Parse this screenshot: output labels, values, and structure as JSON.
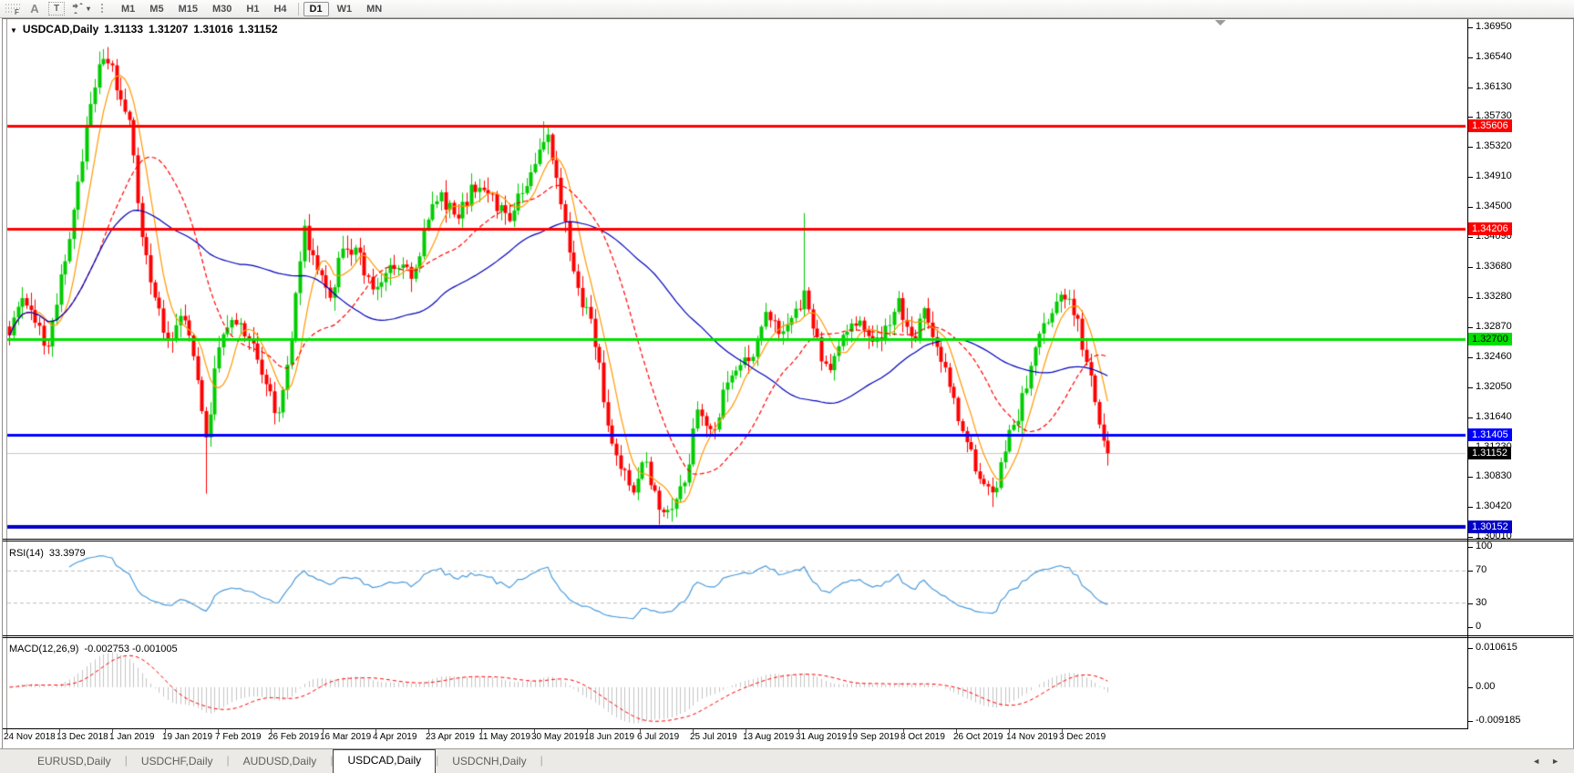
{
  "toolbar": {
    "tools": {
      "fib_glyph": "F",
      "label_glyph": "A",
      "text_glyph": "T",
      "caret": "▾"
    },
    "timeframes": [
      "M1",
      "M5",
      "M15",
      "M30",
      "H1",
      "H4",
      "D1",
      "W1",
      "MN"
    ],
    "active_timeframe": "D1"
  },
  "chart_header": {
    "collapse_icon": "▼",
    "symbol": "USDCAD,Daily",
    "open": "1.31133",
    "high": "1.31207",
    "low": "1.31016",
    "close": "1.31152"
  },
  "chart_data": {
    "type": "candlestick",
    "symbol": "USDCAD",
    "timeframe": "Daily",
    "ohlc_current": {
      "open": 1.31133,
      "high": 1.31207,
      "low": 1.31016,
      "close": 1.31152
    },
    "candle_colors": {
      "bull": "#00CC00",
      "bear": "#FF0000"
    },
    "candle_count": 258,
    "price_axis": {
      "range": [
        1.3,
        1.3706
      ],
      "ticks": [
        "1.36950",
        "1.36540",
        "1.36130",
        "1.35730",
        "1.35320",
        "1.34910",
        "1.34500",
        "1.34090",
        "1.33680",
        "1.33280",
        "1.32870",
        "1.32460",
        "1.32050",
        "1.31640",
        "1.31230",
        "1.30830",
        "1.30420",
        "1.30010"
      ]
    },
    "price_path": [
      [
        0.0,
        1.3285
      ],
      [
        0.017,
        1.333
      ],
      [
        0.033,
        1.3255
      ],
      [
        0.05,
        1.337
      ],
      [
        0.066,
        1.352
      ],
      [
        0.08,
        1.363
      ],
      [
        0.091,
        1.3655
      ],
      [
        0.099,
        1.3605
      ],
      [
        0.109,
        1.356
      ],
      [
        0.119,
        1.343
      ],
      [
        0.131,
        1.333
      ],
      [
        0.142,
        1.327
      ],
      [
        0.157,
        1.3295
      ],
      [
        0.169,
        1.325
      ],
      [
        0.179,
        1.313
      ],
      [
        0.19,
        1.3265
      ],
      [
        0.204,
        1.33
      ],
      [
        0.218,
        1.327
      ],
      [
        0.231,
        1.3225
      ],
      [
        0.245,
        1.316
      ],
      [
        0.256,
        1.326
      ],
      [
        0.268,
        1.342
      ],
      [
        0.278,
        1.337
      ],
      [
        0.291,
        1.332
      ],
      [
        0.303,
        1.34
      ],
      [
        0.316,
        1.339
      ],
      [
        0.328,
        1.334
      ],
      [
        0.34,
        1.3355
      ],
      [
        0.355,
        1.337
      ],
      [
        0.369,
        1.3355
      ],
      [
        0.382,
        1.344
      ],
      [
        0.394,
        1.3465
      ],
      [
        0.407,
        1.343
      ],
      [
        0.419,
        1.347
      ],
      [
        0.431,
        1.3485
      ],
      [
        0.444,
        1.345
      ],
      [
        0.456,
        1.344
      ],
      [
        0.469,
        1.3475
      ],
      [
        0.479,
        1.351
      ],
      [
        0.488,
        1.3555
      ],
      [
        0.496,
        1.3505
      ],
      [
        0.507,
        1.341
      ],
      [
        0.519,
        1.333
      ],
      [
        0.531,
        1.329
      ],
      [
        0.543,
        1.317
      ],
      [
        0.555,
        1.309
      ],
      [
        0.568,
        1.307
      ],
      [
        0.579,
        1.311
      ],
      [
        0.59,
        1.3045
      ],
      [
        0.603,
        1.3035
      ],
      [
        0.615,
        1.308
      ],
      [
        0.628,
        1.318
      ],
      [
        0.64,
        1.3145
      ],
      [
        0.653,
        1.321
      ],
      [
        0.664,
        1.323
      ],
      [
        0.678,
        1.3255
      ],
      [
        0.689,
        1.33
      ],
      [
        0.702,
        1.328
      ],
      [
        0.714,
        1.331
      ],
      [
        0.725,
        1.333
      ],
      [
        0.736,
        1.326
      ],
      [
        0.747,
        1.3225
      ],
      [
        0.76,
        1.328
      ],
      [
        0.772,
        1.33
      ],
      [
        0.785,
        1.3255
      ],
      [
        0.797,
        1.329
      ],
      [
        0.81,
        1.332
      ],
      [
        0.822,
        1.327
      ],
      [
        0.835,
        1.331
      ],
      [
        0.846,
        1.3255
      ],
      [
        0.86,
        1.3185
      ],
      [
        0.871,
        1.3125
      ],
      [
        0.884,
        1.308
      ],
      [
        0.896,
        1.306
      ],
      [
        0.909,
        1.313
      ],
      [
        0.921,
        1.318
      ],
      [
        0.934,
        1.325
      ],
      [
        0.945,
        1.33
      ],
      [
        0.959,
        1.333
      ],
      [
        0.97,
        1.3305
      ],
      [
        0.982,
        1.323
      ],
      [
        0.992,
        1.3165
      ],
      [
        1.0,
        1.31152
      ]
    ],
    "spikes": [
      {
        "f": 0.091,
        "high": 1.3668
      },
      {
        "f": 0.179,
        "low": 1.306
      },
      {
        "f": 0.488,
        "high": 1.3567
      },
      {
        "f": 0.59,
        "low": 1.3018
      },
      {
        "f": 0.603,
        "low": 1.3022
      },
      {
        "f": 0.725,
        "high": 1.3442
      },
      {
        "f": 0.896,
        "low": 1.3042
      }
    ],
    "overlays": [
      {
        "name": "ma-fast",
        "color": "#FF9900",
        "period": 7,
        "dash": null
      },
      {
        "name": "ma-mid",
        "color": "#FF0000",
        "period": 22,
        "dash": [
          5,
          3
        ]
      },
      {
        "name": "ma-slow",
        "color": "#0000BB",
        "period": 55,
        "dash": null
      }
    ],
    "horizontal_levels": [
      {
        "price": 1.35606,
        "label": "1.35606",
        "color": "#FF0000",
        "text_color": "#FFFFFF",
        "width": 3
      },
      {
        "price": 1.34206,
        "label": "1.34206",
        "color": "#FF0000",
        "text_color": "#FFFFFF",
        "width": 3
      },
      {
        "price": 1.327,
        "label": "1.32700",
        "color": "#00E000",
        "text_color": "#000000",
        "width": 3
      },
      {
        "price": 1.31405,
        "label": "1.31405",
        "color": "#0000FF",
        "text_color": "#FFFFFF",
        "width": 3
      },
      {
        "price": 1.30152,
        "label": "1.30152",
        "color": "#0000C8",
        "text_color": "#FFFFFF",
        "width": 4
      }
    ],
    "current_price": {
      "value": 1.31152,
      "label": "1.31152",
      "line_color": "#C8C8C8",
      "bg": "#000000",
      "text_color": "#FFFFFF"
    },
    "rsi": {
      "title": "RSI(14)",
      "value": "33.3979",
      "period": 14,
      "color": "#4C9CDC",
      "levels": [
        70,
        30
      ],
      "range": [
        0,
        100
      ],
      "ticks": [
        {
          "v": 100,
          "t": "100"
        },
        {
          "v": 70,
          "t": "70"
        },
        {
          "v": 30,
          "t": "30"
        },
        {
          "v": 0,
          "t": "0"
        }
      ]
    },
    "macd": {
      "title": "MACD(12,26,9)",
      "values": "-0.002753 -0.001005",
      "fast": 12,
      "slow": 26,
      "signal": 9,
      "hist_color": "#C4C4C4",
      "signal_color": "#FF0000",
      "range": [
        -0.009185,
        0.010615
      ],
      "ticks": [
        {
          "v": 0.010615,
          "t": "0.010615"
        },
        {
          "v": 0,
          "t": "0.00"
        },
        {
          "v": -0.009185,
          "t": "-0.009185"
        }
      ]
    },
    "dates": [
      "24 Nov 2018",
      "13 Dec 2018",
      "1 Jan 2019",
      "19 Jan 2019",
      "7 Feb 2019",
      "26 Feb 2019",
      "16 Mar 2019",
      "4 Apr 2019",
      "23 Apr 2019",
      "11 May 2019",
      "30 May 2019",
      "18 Jun 2019",
      "6 Jul 2019",
      "25 Jul 2019",
      "13 Aug 2019",
      "31 Aug 2019",
      "19 Sep 2019",
      "8 Oct 2019",
      "26 Oct 2019",
      "14 Nov 2019",
      "3 Dec 2019"
    ]
  },
  "tabs": {
    "items": [
      "EURUSD,Daily",
      "USDCHF,Daily",
      "AUDUSD,Daily",
      "USDCAD,Daily",
      "USDCNH,Daily"
    ],
    "active": "USDCAD,Daily",
    "scroll_left": "◄",
    "scroll_right": "►"
  }
}
